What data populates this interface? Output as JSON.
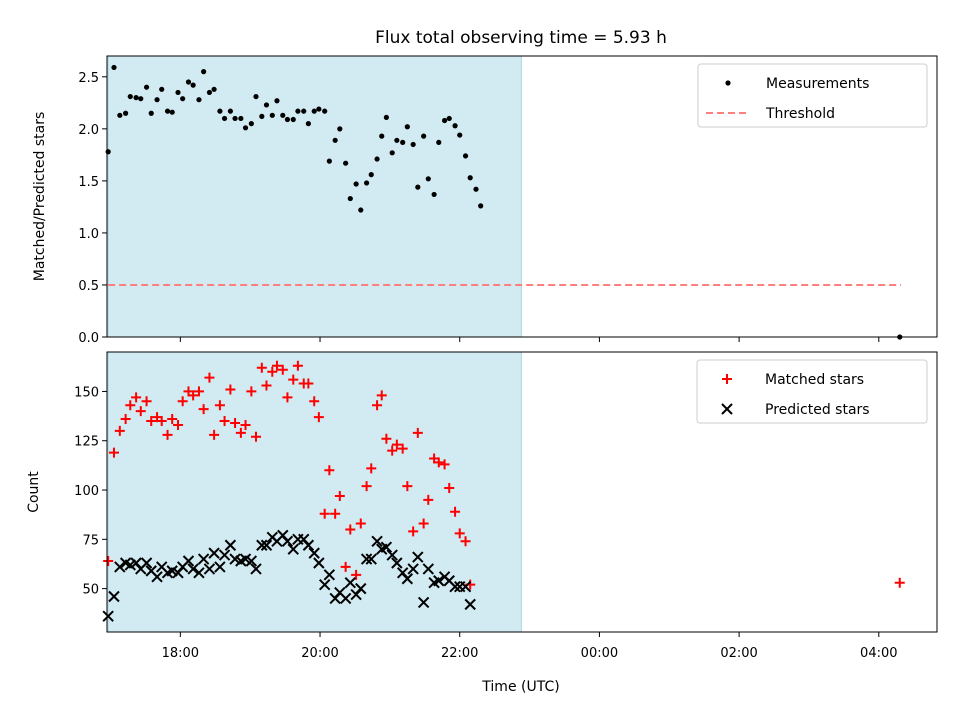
{
  "chart_data": {
    "title": "Flux total observing time = 5.93 h",
    "xlabel": "Time (UTC)",
    "x_ticks": [
      "18:00",
      "20:00",
      "22:00",
      "00:00",
      "02:00",
      "04:00"
    ],
    "x_range": [
      "16:57",
      "04:50"
    ],
    "highlight_span": [
      "16:58",
      "22:53"
    ],
    "colors": {
      "highlight": "#add8e6",
      "measurements": "#000000",
      "threshold": "#ff7f7f",
      "matched": "#ff0000",
      "predicted": "#000000"
    },
    "panels": [
      {
        "type": "scatter",
        "ylabel": "Matched/Predicted stars",
        "ylim": [
          0,
          2.7
        ],
        "y_ticks": [
          "0.0",
          "0.5",
          "1.0",
          "1.5",
          "2.0",
          "2.5"
        ],
        "legend_position": "upper right",
        "threshold": 0.5,
        "legend": [
          {
            "label": "Measurements",
            "marker": "dot"
          },
          {
            "label": "Threshold",
            "marker": "dashed-line"
          }
        ],
        "series": [
          {
            "name": "Measurements",
            "points": [
              [
                "16:58",
                1.78
              ],
              [
                "17:03",
                2.59
              ],
              [
                "17:08",
                2.13
              ],
              [
                "17:13",
                2.15
              ],
              [
                "17:17",
                2.31
              ],
              [
                "17:22",
                2.3
              ],
              [
                "17:26",
                2.29
              ],
              [
                "17:31",
                2.4
              ],
              [
                "17:35",
                2.15
              ],
              [
                "17:40",
                2.28
              ],
              [
                "17:44",
                2.38
              ],
              [
                "17:49",
                2.17
              ],
              [
                "17:53",
                2.16
              ],
              [
                "17:58",
                2.35
              ],
              [
                "18:02",
                2.29
              ],
              [
                "18:07",
                2.45
              ],
              [
                "18:11",
                2.42
              ],
              [
                "18:16",
                2.28
              ],
              [
                "18:20",
                2.55
              ],
              [
                "18:25",
                2.35
              ],
              [
                "18:29",
                2.38
              ],
              [
                "18:34",
                2.17
              ],
              [
                "18:38",
                2.1
              ],
              [
                "18:43",
                2.17
              ],
              [
                "18:47",
                2.1
              ],
              [
                "18:52",
                2.1
              ],
              [
                "18:56",
                2.01
              ],
              [
                "19:01",
                2.05
              ],
              [
                "19:05",
                2.31
              ],
              [
                "19:10",
                2.12
              ],
              [
                "19:14",
                2.23
              ],
              [
                "19:19",
                2.13
              ],
              [
                "19:23",
                2.27
              ],
              [
                "19:28",
                2.13
              ],
              [
                "19:32",
                2.09
              ],
              [
                "19:37",
                2.09
              ],
              [
                "19:41",
                2.17
              ],
              [
                "19:46",
                2.17
              ],
              [
                "19:50",
                2.05
              ],
              [
                "19:55",
                2.17
              ],
              [
                "19:59",
                2.19
              ],
              [
                "20:04",
                2.17
              ],
              [
                "20:08",
                1.69
              ],
              [
                "20:13",
                1.89
              ],
              [
                "20:17",
                2.0
              ],
              [
                "20:22",
                1.67
              ],
              [
                "20:26",
                1.33
              ],
              [
                "20:31",
                1.47
              ],
              [
                "20:35",
                1.22
              ],
              [
                "20:40",
                1.48
              ],
              [
                "20:44",
                1.56
              ],
              [
                "20:49",
                1.71
              ],
              [
                "20:53",
                1.93
              ],
              [
                "20:57",
                2.11
              ],
              [
                "21:02",
                1.77
              ],
              [
                "21:06",
                1.89
              ],
              [
                "21:11",
                1.87
              ],
              [
                "21:15",
                2.02
              ],
              [
                "21:20",
                1.85
              ],
              [
                "21:24",
                1.44
              ],
              [
                "21:29",
                1.93
              ],
              [
                "21:33",
                1.52
              ],
              [
                "21:38",
                1.37
              ],
              [
                "21:42",
                1.87
              ],
              [
                "21:47",
                2.08
              ],
              [
                "21:51",
                2.1
              ],
              [
                "21:56",
                2.03
              ],
              [
                "22:00",
                1.94
              ],
              [
                "22:05",
                1.74
              ],
              [
                "22:09",
                1.53
              ],
              [
                "22:14",
                1.42
              ],
              [
                "22:18",
                1.26
              ],
              [
                "04:18",
                0.0
              ]
            ]
          }
        ]
      },
      {
        "type": "scatter",
        "ylabel": "Count",
        "ylim": [
          28,
          170
        ],
        "y_ticks": [
          "50",
          "75",
          "100",
          "125",
          "150"
        ],
        "legend_position": "upper right",
        "legend": [
          {
            "label": "Matched stars",
            "marker": "plus"
          },
          {
            "label": "Predicted stars",
            "marker": "x"
          }
        ],
        "series": [
          {
            "name": "Matched stars",
            "points": [
              [
                "16:58",
                64
              ],
              [
                "17:03",
                119
              ],
              [
                "17:08",
                130
              ],
              [
                "17:13",
                136
              ],
              [
                "17:17",
                143
              ],
              [
                "17:22",
                147
              ],
              [
                "17:26",
                140
              ],
              [
                "17:31",
                145
              ],
              [
                "17:35",
                135
              ],
              [
                "17:40",
                137
              ],
              [
                "17:44",
                135
              ],
              [
                "17:49",
                128
              ],
              [
                "17:53",
                136
              ],
              [
                "17:58",
                133
              ],
              [
                "18:02",
                145
              ],
              [
                "18:07",
                150
              ],
              [
                "18:11",
                148
              ],
              [
                "18:16",
                150
              ],
              [
                "18:20",
                141
              ],
              [
                "18:25",
                157
              ],
              [
                "18:29",
                128
              ],
              [
                "18:34",
                143
              ],
              [
                "18:38",
                135
              ],
              [
                "18:43",
                151
              ],
              [
                "18:47",
                134
              ],
              [
                "18:52",
                129
              ],
              [
                "18:56",
                133
              ],
              [
                "19:01",
                150
              ],
              [
                "19:05",
                127
              ],
              [
                "19:10",
                162
              ],
              [
                "19:14",
                153
              ],
              [
                "19:19",
                160
              ],
              [
                "19:23",
                163
              ],
              [
                "19:28",
                161
              ],
              [
                "19:32",
                147
              ],
              [
                "19:37",
                156
              ],
              [
                "19:41",
                163
              ],
              [
                "19:46",
                154
              ],
              [
                "19:50",
                154
              ],
              [
                "19:55",
                145
              ],
              [
                "19:59",
                137
              ],
              [
                "20:04",
                88
              ],
              [
                "20:08",
                110
              ],
              [
                "20:13",
                88
              ],
              [
                "20:17",
                97
              ],
              [
                "20:22",
                61
              ],
              [
                "20:26",
                80
              ],
              [
                "20:31",
                57
              ],
              [
                "20:35",
                83
              ],
              [
                "20:40",
                102
              ],
              [
                "20:44",
                111
              ],
              [
                "20:49",
                143
              ],
              [
                "20:53",
                148
              ],
              [
                "20:57",
                126
              ],
              [
                "21:02",
                120
              ],
              [
                "21:06",
                123
              ],
              [
                "21:11",
                121
              ],
              [
                "21:15",
                102
              ],
              [
                "21:20",
                79
              ],
              [
                "21:24",
                129
              ],
              [
                "21:29",
                83
              ],
              [
                "21:33",
                95
              ],
              [
                "21:38",
                116
              ],
              [
                "21:42",
                114
              ],
              [
                "21:47",
                113
              ],
              [
                "21:51",
                101
              ],
              [
                "21:56",
                89
              ],
              [
                "22:00",
                78
              ],
              [
                "22:05",
                74
              ],
              [
                "22:09",
                52
              ],
              [
                "04:18",
                53
              ]
            ]
          },
          {
            "name": "Predicted stars",
            "points": [
              [
                "16:58",
                36
              ],
              [
                "17:03",
                46
              ],
              [
                "17:08",
                61
              ],
              [
                "17:13",
                63
              ],
              [
                "17:17",
                62
              ],
              [
                "17:22",
                63
              ],
              [
                "17:26",
                60
              ],
              [
                "17:31",
                63
              ],
              [
                "17:35",
                59
              ],
              [
                "17:40",
                56
              ],
              [
                "17:44",
                61
              ],
              [
                "17:49",
                58
              ],
              [
                "17:53",
                59
              ],
              [
                "17:58",
                58
              ],
              [
                "18:02",
                61
              ],
              [
                "18:07",
                64
              ],
              [
                "18:11",
                60
              ],
              [
                "18:16",
                58
              ],
              [
                "18:20",
                65
              ],
              [
                "18:25",
                60
              ],
              [
                "18:29",
                68
              ],
              [
                "18:34",
                61
              ],
              [
                "18:38",
                67
              ],
              [
                "18:43",
                72
              ],
              [
                "18:47",
                65
              ],
              [
                "18:52",
                64
              ],
              [
                "18:56",
                65
              ],
              [
                "19:01",
                64
              ],
              [
                "19:05",
                60
              ],
              [
                "19:10",
                72
              ],
              [
                "19:14",
                72
              ],
              [
                "19:19",
                76
              ],
              [
                "19:23",
                74
              ],
              [
                "19:28",
                77
              ],
              [
                "19:32",
                74
              ],
              [
                "19:37",
                70
              ],
              [
                "19:41",
                75
              ],
              [
                "19:46",
                75
              ],
              [
                "19:50",
                72
              ],
              [
                "19:55",
                68
              ],
              [
                "19:59",
                63
              ],
              [
                "20:04",
                52
              ],
              [
                "20:08",
                57
              ],
              [
                "20:13",
                45
              ],
              [
                "20:17",
                48
              ],
              [
                "20:22",
                45
              ],
              [
                "20:26",
                53
              ],
              [
                "20:31",
                47
              ],
              [
                "20:35",
                50
              ],
              [
                "20:40",
                65
              ],
              [
                "20:44",
                65
              ],
              [
                "20:49",
                74
              ],
              [
                "20:53",
                70
              ],
              [
                "20:57",
                71
              ],
              [
                "21:02",
                67
              ],
              [
                "21:06",
                63
              ],
              [
                "21:11",
                58
              ],
              [
                "21:15",
                55
              ],
              [
                "21:20",
                60
              ],
              [
                "21:24",
                66
              ],
              [
                "21:29",
                43
              ],
              [
                "21:33",
                60
              ],
              [
                "21:38",
                53
              ],
              [
                "21:42",
                54
              ],
              [
                "21:47",
                56
              ],
              [
                "21:51",
                54
              ],
              [
                "21:56",
                51
              ],
              [
                "22:00",
                51
              ],
              [
                "22:05",
                51
              ],
              [
                "22:09",
                42
              ]
            ]
          }
        ]
      }
    ]
  }
}
